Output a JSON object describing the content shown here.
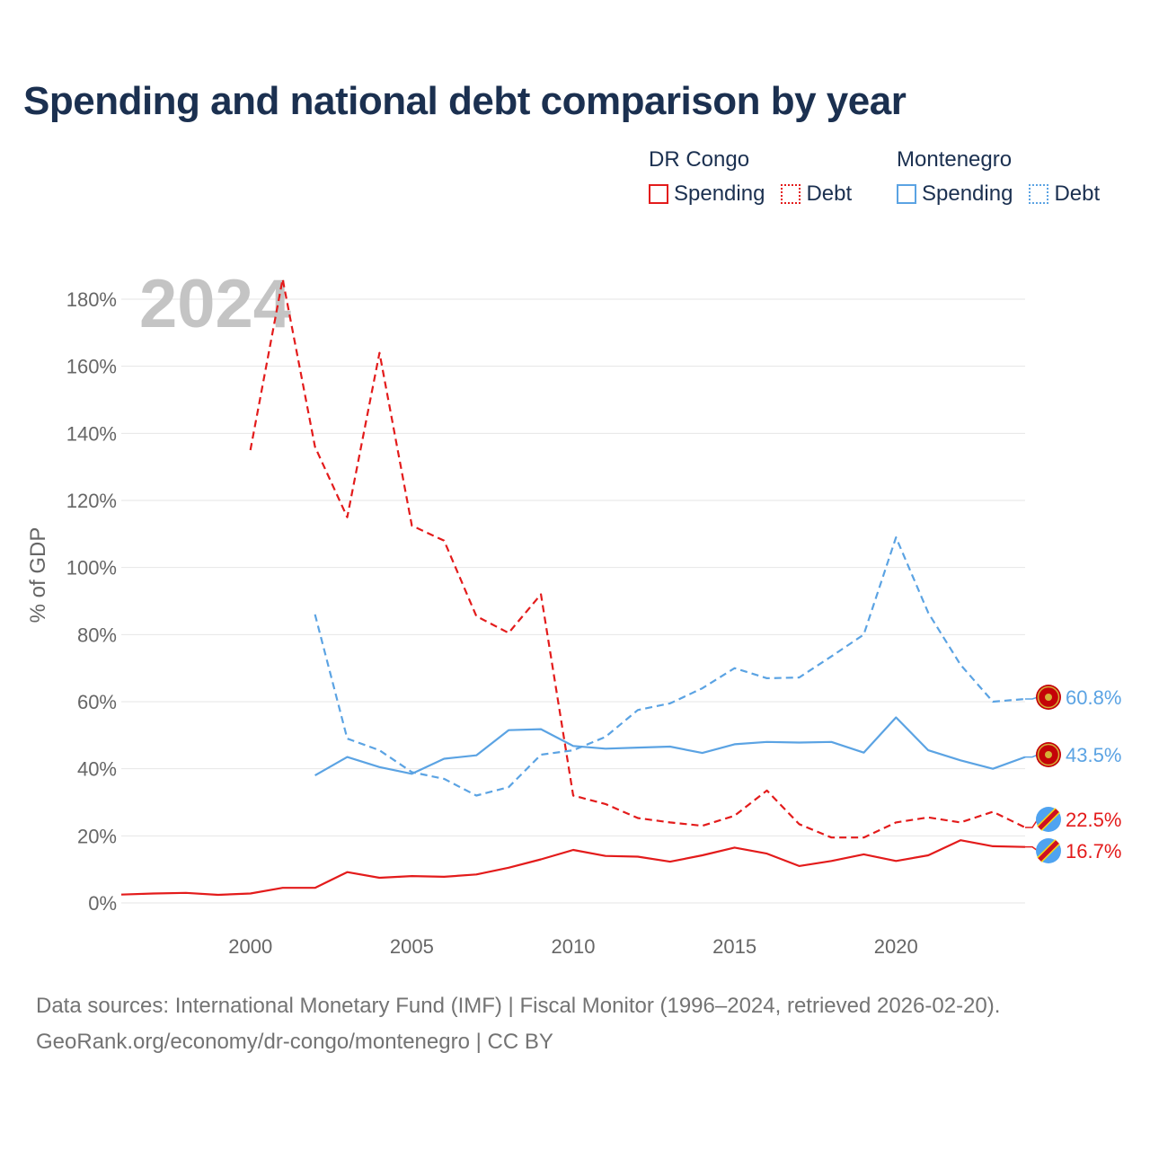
{
  "title": "Spending and national debt comparison by year",
  "legend": {
    "groups": [
      {
        "name": "DR Congo",
        "items": [
          "Spending",
          "Debt"
        ]
      },
      {
        "name": "Montenegro",
        "items": [
          "Spending",
          "Debt"
        ]
      }
    ]
  },
  "year_watermark": "2024",
  "footer": {
    "source": "Data sources: International Monetary Fund (IMF) | Fiscal Monitor (1996–2024, retrieved 2026-02-20).",
    "url": "GeoRank.org/economy/dr-congo/montenegro | CC BY"
  },
  "colors": {
    "drc": "#e31b1b",
    "mne": "#5ba3e3",
    "grid": "#e6e6e6",
    "text": "#1b3050",
    "axis_text": "#666666"
  },
  "chart_data": {
    "type": "line",
    "title": "Spending and national debt comparison by year",
    "xlabel": "",
    "ylabel": "% of GDP",
    "xlim": [
      1996,
      2024
    ],
    "ylim": [
      0,
      180
    ],
    "xticks": [
      2000,
      2005,
      2010,
      2015,
      2020
    ],
    "yticks": [
      0,
      20,
      40,
      60,
      80,
      100,
      120,
      140,
      160,
      180
    ],
    "series": [
      {
        "name": "DR Congo Spending",
        "country": "DR Congo",
        "style": "solid",
        "color": "#e31b1b",
        "x": [
          1996,
          1997,
          1998,
          1999,
          2000,
          2001,
          2002,
          2003,
          2004,
          2005,
          2006,
          2007,
          2008,
          2009,
          2010,
          2011,
          2012,
          2013,
          2014,
          2015,
          2016,
          2017,
          2018,
          2019,
          2020,
          2021,
          2022,
          2023,
          2024
        ],
        "y": [
          2.5,
          2.8,
          3.0,
          2.4,
          2.8,
          4.5,
          4.5,
          9.2,
          7.5,
          8.0,
          7.8,
          8.5,
          10.5,
          13.0,
          15.8,
          14.0,
          13.8,
          12.3,
          14.2,
          16.5,
          14.7,
          11.0,
          12.5,
          14.5,
          12.5,
          14.2,
          18.7,
          16.9,
          16.7
        ],
        "end_label": "16.7%"
      },
      {
        "name": "DR Congo Debt",
        "country": "DR Congo",
        "style": "dashed",
        "color": "#e31b1b",
        "x": [
          2000,
          2001,
          2002,
          2003,
          2004,
          2005,
          2006,
          2007,
          2008,
          2009,
          2010,
          2011,
          2012,
          2013,
          2014,
          2015,
          2016,
          2017,
          2018,
          2019,
          2020,
          2021,
          2022,
          2023,
          2024
        ],
        "y": [
          135,
          186,
          136,
          115,
          164,
          112.5,
          108,
          85.5,
          80.5,
          92,
          32,
          29.5,
          25.3,
          24,
          23,
          26,
          33.5,
          23.5,
          19.5,
          19.5,
          24,
          25.5,
          24,
          27.2,
          22.5
        ],
        "end_label": "22.5%"
      },
      {
        "name": "Montenegro Spending",
        "country": "Montenegro",
        "style": "solid",
        "color": "#5ba3e3",
        "x": [
          2002,
          2003,
          2004,
          2005,
          2006,
          2007,
          2008,
          2009,
          2010,
          2011,
          2012,
          2013,
          2014,
          2015,
          2016,
          2017,
          2018,
          2019,
          2020,
          2021,
          2022,
          2023,
          2024
        ],
        "y": [
          38,
          43.5,
          40.5,
          38.5,
          43,
          44,
          51.5,
          51.8,
          46.8,
          46,
          46.3,
          46.6,
          44.7,
          47.3,
          48,
          47.8,
          48,
          44.8,
          55.3,
          45.5,
          42.5,
          40,
          43.5
        ],
        "end_label": "43.5%"
      },
      {
        "name": "Montenegro Debt",
        "country": "Montenegro",
        "style": "dashed",
        "color": "#5ba3e3",
        "x": [
          2002,
          2003,
          2004,
          2005,
          2006,
          2007,
          2008,
          2009,
          2010,
          2011,
          2012,
          2013,
          2014,
          2015,
          2016,
          2017,
          2018,
          2019,
          2020,
          2021,
          2022,
          2023,
          2024
        ],
        "y": [
          86,
          49,
          45.5,
          39,
          37,
          32,
          34.5,
          44.2,
          45.5,
          49.5,
          57.5,
          59.5,
          64,
          70,
          67,
          67.2,
          73.5,
          80,
          109,
          86.5,
          71,
          60,
          60.8
        ],
        "end_label": "60.8%"
      }
    ]
  }
}
